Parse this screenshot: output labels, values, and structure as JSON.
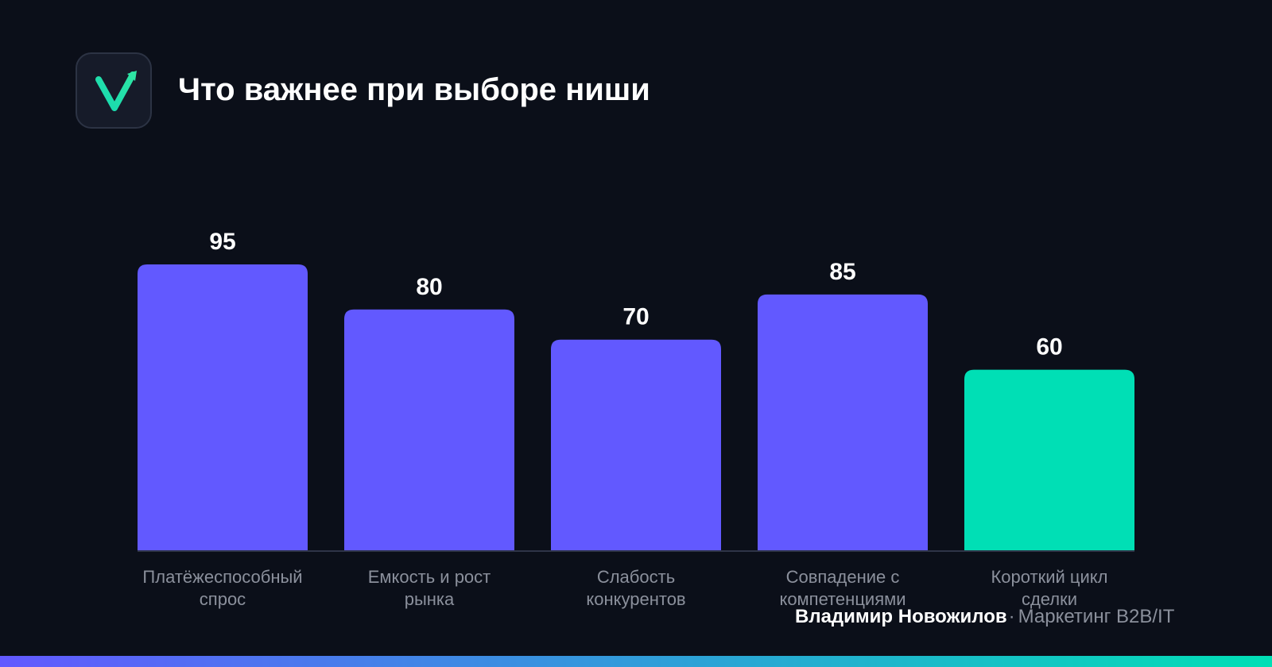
{
  "header": {
    "logo_icon": "check-arrow-icon",
    "title": "Что важнее при выборе ниши"
  },
  "chart_data": {
    "type": "bar",
    "title": "Что важнее при выборе ниши",
    "xlabel": "",
    "ylabel": "",
    "ylim": [
      0,
      100
    ],
    "grid": false,
    "categories": [
      [
        "Платёжеспособный",
        "спрос"
      ],
      [
        "Емкость и рост",
        "рынка"
      ],
      [
        "Слабость",
        "конкурентов"
      ],
      [
        "Совпадение с",
        "компетенциями"
      ],
      [
        "Короткий цикл",
        "сделки"
      ]
    ],
    "values": [
      95,
      80,
      70,
      85,
      60
    ],
    "colors": [
      "#6259ff",
      "#6259ff",
      "#6259ff",
      "#6259ff",
      "#00dfb5"
    ]
  },
  "footer": {
    "author": "Владимир Новожилов",
    "separator": "·",
    "subtitle": "Маркетинг B2B/IT"
  },
  "colors": {
    "background": "#0b0f19",
    "bar_primary": "#6259ff",
    "bar_highlight": "#00dfb5",
    "logo_accent": "#19e0b5",
    "muted_text": "#8b909c",
    "gradient_start": "#6259ff",
    "gradient_end": "#00dfb5"
  }
}
